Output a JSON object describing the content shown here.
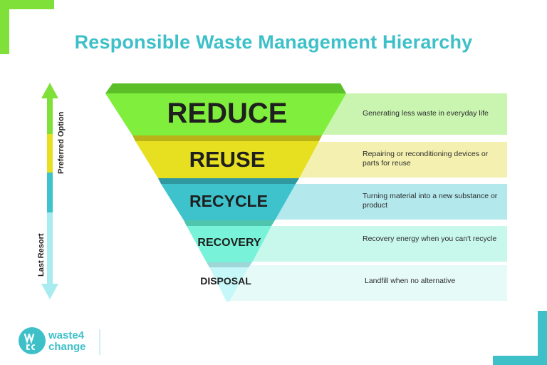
{
  "title": "Responsible Waste Management Hierarchy",
  "axis": {
    "top_label": "Preferred Option",
    "bottom_label": "Last Resort"
  },
  "tiers": [
    {
      "label": "REDUCE",
      "description": "Generating less waste in everyday life",
      "color": "#7fee3c",
      "band_color": "#c9f5b0"
    },
    {
      "label": "REUSE",
      "description": "Repairing or reconditioning devices or parts for reuse",
      "color": "#e6e021",
      "band_color": "#f4f1b0"
    },
    {
      "label": "RECYCLE",
      "description": "Turning material into a new substance or product",
      "color": "#3ec3cc",
      "band_color": "#b3e8ed"
    },
    {
      "label": "RECOVERY",
      "description": "Recovery energy when you can't recycle",
      "color": "#78f2d8",
      "band_color": "#c8f7ec"
    },
    {
      "label": "DISPOSAL",
      "description": "Landfill when no alternative",
      "color": "#c6f8f9",
      "band_color": "#e6faf7"
    }
  ],
  "logo": {
    "line1": "waste4",
    "line2": "change",
    "icon": "waste4change-logo-icon"
  },
  "colors": {
    "accent_green": "#7fe03a",
    "accent_teal": "#3ec0c9"
  }
}
